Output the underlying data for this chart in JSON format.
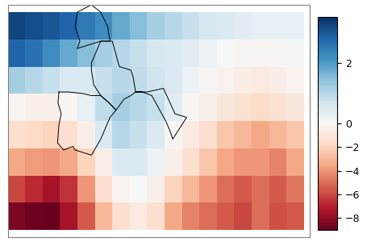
{
  "lon_min": -20.0,
  "lon_max": 45.0,
  "lat_min": 24.0,
  "lat_max": 56.0,
  "lon_step": 3.75,
  "lat_step": 3.75,
  "vmin": -9.0,
  "vmax": 3.5,
  "vcenter": 0.0,
  "cbar_ticks": [
    2,
    0,
    -2,
    -4,
    -6,
    -8
  ],
  "colormap": "RdBu",
  "lons": [
    -18.125,
    -14.375,
    -10.625,
    -6.875,
    -3.125,
    0.625,
    4.375,
    8.125,
    11.875,
    15.625,
    19.375,
    23.125,
    26.875,
    30.625,
    34.375,
    38.125,
    41.875
  ],
  "lats": [
    53.125,
    49.375,
    45.625,
    41.875,
    38.125,
    34.375,
    30.625,
    26.875
  ],
  "grid_data": [
    [
      3.2,
      3.1,
      3.0,
      2.8,
      2.5,
      2.2,
      1.8,
      1.5,
      1.2,
      1.0,
      0.8,
      0.6,
      0.5,
      0.4,
      0.3,
      0.3,
      0.3
    ],
    [
      2.8,
      2.6,
      2.2,
      1.8,
      1.5,
      1.2,
      1.0,
      0.8,
      0.6,
      0.5,
      0.4,
      0.2,
      0.0,
      -0.1,
      -0.2,
      -0.1,
      0.1
    ],
    [
      1.2,
      1.0,
      0.8,
      0.5,
      0.5,
      0.8,
      1.0,
      0.9,
      0.7,
      0.5,
      0.2,
      -0.1,
      -0.4,
      -0.7,
      -0.8,
      -0.6,
      -0.3
    ],
    [
      -0.2,
      -0.5,
      -0.5,
      -0.2,
      0.3,
      0.9,
      1.2,
      1.0,
      0.8,
      0.4,
      -0.1,
      -0.5,
      -1.0,
      -1.4,
      -1.7,
      -1.4,
      -1.0
    ],
    [
      -1.5,
      -1.8,
      -2.0,
      -1.5,
      -0.5,
      0.5,
      1.0,
      0.8,
      0.5,
      -0.1,
      -0.8,
      -1.5,
      -2.5,
      -3.0,
      -3.5,
      -3.0,
      -2.5
    ],
    [
      -3.5,
      -3.8,
      -4.0,
      -3.5,
      -2.0,
      -0.5,
      0.5,
      0.5,
      0.2,
      -0.5,
      -1.5,
      -2.5,
      -3.5,
      -4.0,
      -4.0,
      -4.5,
      -3.5
    ],
    [
      -6.0,
      -6.8,
      -7.5,
      -6.5,
      -4.0,
      -1.5,
      -0.3,
      0.0,
      -0.5,
      -2.0,
      -3.0,
      -4.0,
      -5.0,
      -5.5,
      -5.0,
      -5.5,
      -4.8
    ],
    [
      -8.5,
      -8.8,
      -9.0,
      -7.5,
      -5.5,
      -3.0,
      -1.5,
      -0.8,
      -1.5,
      -3.5,
      -4.5,
      -5.0,
      -5.5,
      -6.0,
      -5.0,
      -5.8,
      -5.5
    ]
  ]
}
